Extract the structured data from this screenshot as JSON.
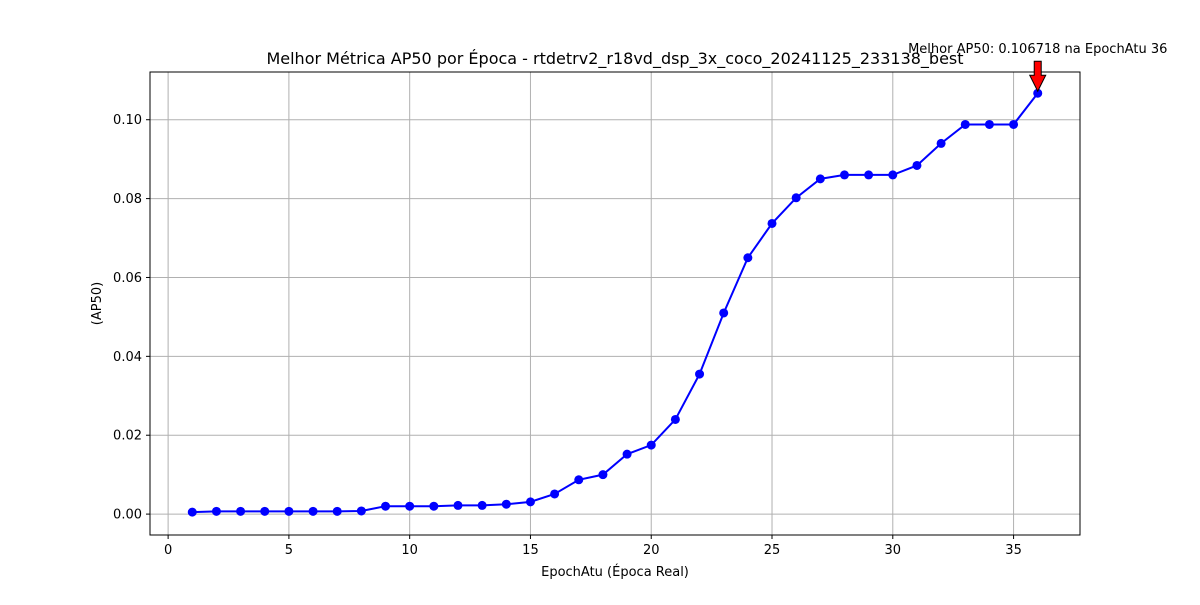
{
  "chart_data": {
    "type": "line",
    "title": "Melhor Métrica AP50 por Época - rtdetrv2_r18vd_dsp_3x_coco_20241125_233138_best",
    "xlabel": "EpochAtu (Época Real)",
    "ylabel": "(AP50)",
    "xlim": [
      -0.75,
      37.75
    ],
    "ylim": [
      -0.0053,
      0.1121
    ],
    "xticks": [
      0,
      5,
      10,
      15,
      20,
      25,
      30,
      35
    ],
    "xtick_labels": [
      "0",
      "5",
      "10",
      "15",
      "20",
      "25",
      "30",
      "35"
    ],
    "yticks": [
      0.0,
      0.02,
      0.04,
      0.06,
      0.08,
      0.1
    ],
    "ytick_labels": [
      "0.00",
      "0.02",
      "0.04",
      "0.06",
      "0.08",
      "0.10"
    ],
    "grid": true,
    "series": [
      {
        "color": "#0000ff",
        "marker": "circle",
        "x": [
          1,
          2,
          3,
          4,
          5,
          6,
          7,
          8,
          9,
          10,
          11,
          12,
          13,
          14,
          15,
          16,
          17,
          18,
          19,
          20,
          21,
          22,
          23,
          24,
          25,
          26,
          27,
          28,
          29,
          30,
          31,
          32,
          33,
          34,
          35,
          36
        ],
        "y": [
          0.0005,
          0.0007,
          0.0007,
          0.0007,
          0.0007,
          0.0007,
          0.0007,
          0.0008,
          0.002,
          0.002,
          0.002,
          0.0022,
          0.0022,
          0.0025,
          0.0031,
          0.0051,
          0.0087,
          0.01,
          0.0152,
          0.0175,
          0.024,
          0.0355,
          0.051,
          0.065,
          0.0737,
          0.0802,
          0.085,
          0.086,
          0.086,
          0.086,
          0.0884,
          0.094,
          0.0988,
          0.0988,
          0.0988,
          0.106718
        ]
      }
    ],
    "annotation": {
      "text": "Melhor AP50: 0.106718 na EpochAtu 36",
      "x": 36,
      "y": 0.106718,
      "arrow_color": "#ff0000"
    }
  }
}
